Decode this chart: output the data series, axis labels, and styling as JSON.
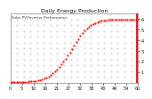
{
  "title": "Daily Energy Production",
  "subtitle": "Solar PV/Inverter Performance",
  "background_color": "#ffffff",
  "plot_bg_color": "#ffffff",
  "grid_dot_color": "#aaaaaa",
  "dot_color": "#ff0000",
  "vline_color": "#ff0000",
  "text_color": "#000000",
  "tick_color": "#000000",
  "title_color": "#000000",
  "x_values": [
    0,
    1,
    2,
    3,
    4,
    5,
    6,
    7,
    8,
    9,
    10,
    11,
    12,
    13,
    14,
    15,
    16,
    17,
    18,
    19,
    20,
    21,
    22,
    23,
    24,
    25,
    26,
    27,
    28,
    29,
    30,
    31,
    32,
    33,
    34,
    35,
    36,
    37,
    38,
    39,
    40,
    41,
    42,
    43,
    44,
    45,
    46,
    47,
    48,
    49,
    50,
    51,
    52,
    53,
    54,
    55,
    56,
    57,
    58,
    59,
    60
  ],
  "y_values": [
    0.02,
    0.02,
    0.02,
    0.02,
    0.03,
    0.04,
    0.05,
    0.06,
    0.07,
    0.09,
    0.11,
    0.13,
    0.16,
    0.2,
    0.25,
    0.31,
    0.38,
    0.47,
    0.58,
    0.71,
    0.86,
    1.03,
    1.23,
    1.45,
    1.69,
    1.96,
    2.24,
    2.54,
    2.85,
    3.17,
    3.49,
    3.81,
    4.11,
    4.4,
    4.66,
    4.9,
    5.1,
    5.28,
    5.43,
    5.55,
    5.65,
    5.73,
    5.79,
    5.83,
    5.87,
    5.9,
    5.92,
    5.93,
    5.94,
    5.95,
    5.95,
    5.96,
    5.96,
    5.96,
    5.97,
    5.97,
    5.97,
    5.97,
    5.97,
    5.97,
    5.97
  ],
  "ylim": [
    0,
    6.5
  ],
  "xlim": [
    0,
    60
  ],
  "yticks": [
    1,
    2,
    3,
    4,
    5,
    6
  ],
  "ytick_labels": [
    "1",
    "2",
    "3",
    "4",
    "5",
    "6"
  ],
  "xtick_count": 12,
  "title_fontsize": 4.5,
  "tick_fontsize": 3.5,
  "dot_size": 2.5,
  "grid_cols": 20,
  "grid_rows": 13
}
